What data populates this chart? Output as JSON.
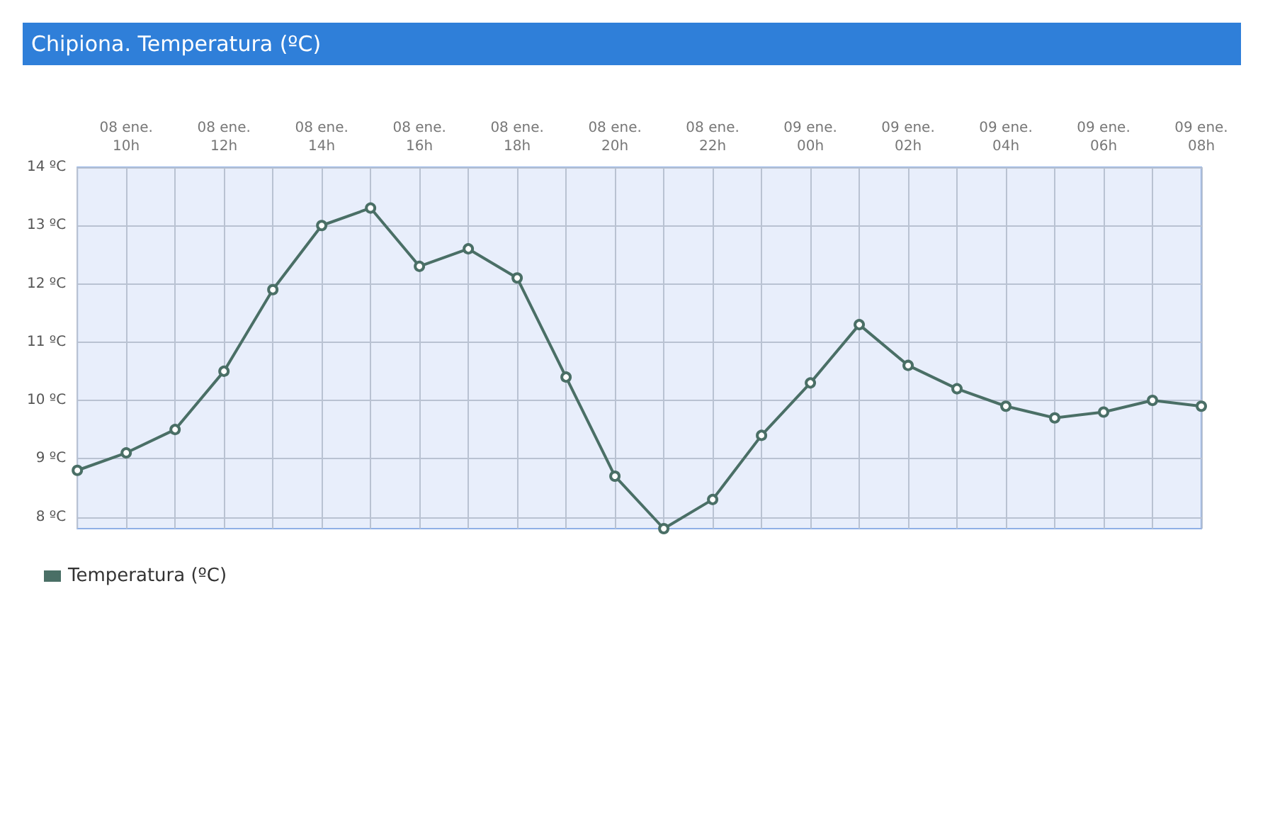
{
  "chart_data": {
    "type": "line",
    "title": "Chipiona. Temperatura (ºC)",
    "categories": [
      null,
      "08 ene.\n10h",
      null,
      "08 ene.\n12h",
      null,
      "08 ene.\n14h",
      null,
      "08 ene.\n16h",
      null,
      "08 ene.\n18h",
      null,
      "08 ene.\n20h",
      null,
      "08 ene.\n22h",
      null,
      "09 ene.\n00h",
      null,
      "09 ene.\n02h",
      null,
      "09 ene.\n04h",
      null,
      "09 ene.\n06h",
      null,
      "09 ene.\n08h"
    ],
    "series": [
      {
        "name": "Temperatura (ºC)",
        "color": "#4a6f66",
        "values": [
          8.8,
          9.1,
          9.5,
          10.5,
          11.9,
          13.0,
          13.3,
          12.3,
          12.6,
          12.1,
          10.4,
          8.7,
          7.8,
          8.3,
          9.4,
          10.3,
          11.3,
          10.6,
          10.2,
          9.9,
          9.7,
          9.8,
          10.0,
          9.9
        ]
      }
    ],
    "ylim": [
      7.8,
      14
    ],
    "yticks": [
      {
        "value": 8,
        "label": "8 ºC"
      },
      {
        "value": 9,
        "label": "9 ºC"
      },
      {
        "value": 10,
        "label": "10 ºC"
      },
      {
        "value": 11,
        "label": "11 ºC"
      },
      {
        "value": 12,
        "label": "12 ºC"
      },
      {
        "value": 13,
        "label": "13 ºC"
      },
      {
        "value": 14,
        "label": "14 ºC"
      }
    ],
    "grid": true,
    "legend": "bottom left",
    "marker": "circle",
    "line_style": "solid"
  }
}
